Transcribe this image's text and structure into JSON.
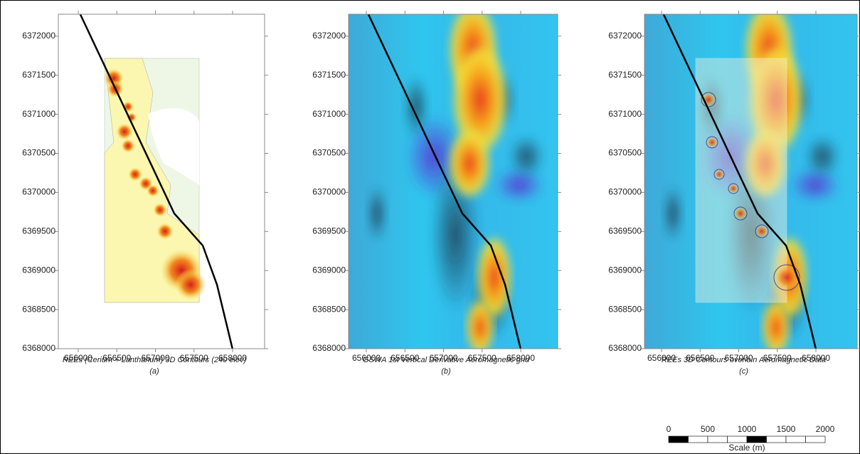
{
  "panels": [
    {
      "yticks": [
        6368000,
        6368500,
        6369000,
        6369500,
        6370000,
        6370500,
        6371000,
        6371500,
        6372000
      ],
      "xticks": [
        656000,
        656500,
        657000,
        657500,
        658000
      ],
      "caption": "REEs (Cerium + Lanthanum) 3D Contours (240 elev)",
      "label": "(a)"
    },
    {
      "yticks": [
        6368000,
        6368500,
        6369000,
        6369500,
        6370000,
        6370500,
        6371000,
        6371500,
        6372000
      ],
      "xticks": [
        656000,
        656500,
        657000,
        657500,
        658000
      ],
      "caption": "GSWA 1st Vertical Derivative Aeromagnetic grid",
      "label": "(b)"
    },
    {
      "yticks": [
        6368000,
        6368500,
        6369000,
        6369500,
        6370000,
        6370500,
        6371000,
        6371500,
        6372000
      ],
      "xticks": [
        656000,
        656500,
        657000,
        657500,
        658000
      ],
      "caption": "REEs 3D Contours overlain Aeromagnetic Data",
      "label": "(c)"
    }
  ],
  "scale": {
    "ticks": [
      0,
      500,
      1000,
      1500,
      2000
    ],
    "label": "Scale (m)"
  }
}
